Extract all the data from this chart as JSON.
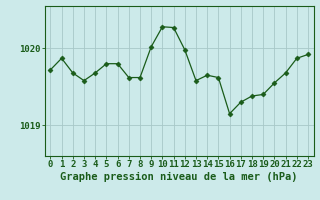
{
  "x": [
    0,
    1,
    2,
    3,
    4,
    5,
    6,
    7,
    8,
    9,
    10,
    11,
    12,
    13,
    14,
    15,
    16,
    17,
    18,
    19,
    20,
    21,
    22,
    23
  ],
  "y": [
    1019.72,
    1019.87,
    1019.68,
    1019.58,
    1019.68,
    1019.8,
    1019.8,
    1019.62,
    1019.62,
    1020.02,
    1020.28,
    1020.27,
    1019.98,
    1019.58,
    1019.65,
    1019.62,
    1019.15,
    1019.3,
    1019.38,
    1019.4,
    1019.55,
    1019.68,
    1019.87,
    1019.92
  ],
  "line_color": "#1a5c1a",
  "marker": "D",
  "marker_size": 2.5,
  "bg_color": "#cceaea",
  "grid_color": "#a8c8c8",
  "yticks": [
    1019.0,
    1020.0
  ],
  "ylim": [
    1018.6,
    1020.55
  ],
  "xlim": [
    -0.5,
    23.5
  ],
  "xtick_labels": [
    "0",
    "1",
    "2",
    "3",
    "4",
    "5",
    "6",
    "7",
    "8",
    "9",
    "10",
    "11",
    "12",
    "13",
    "14",
    "15",
    "16",
    "17",
    "18",
    "19",
    "20",
    "21",
    "22",
    "23"
  ],
  "xlabel": "Graphe pression niveau de la mer (hPa)",
  "axis_color": "#1a5c1a",
  "tick_fontsize": 6.5,
  "xlabel_fontsize": 7.5
}
